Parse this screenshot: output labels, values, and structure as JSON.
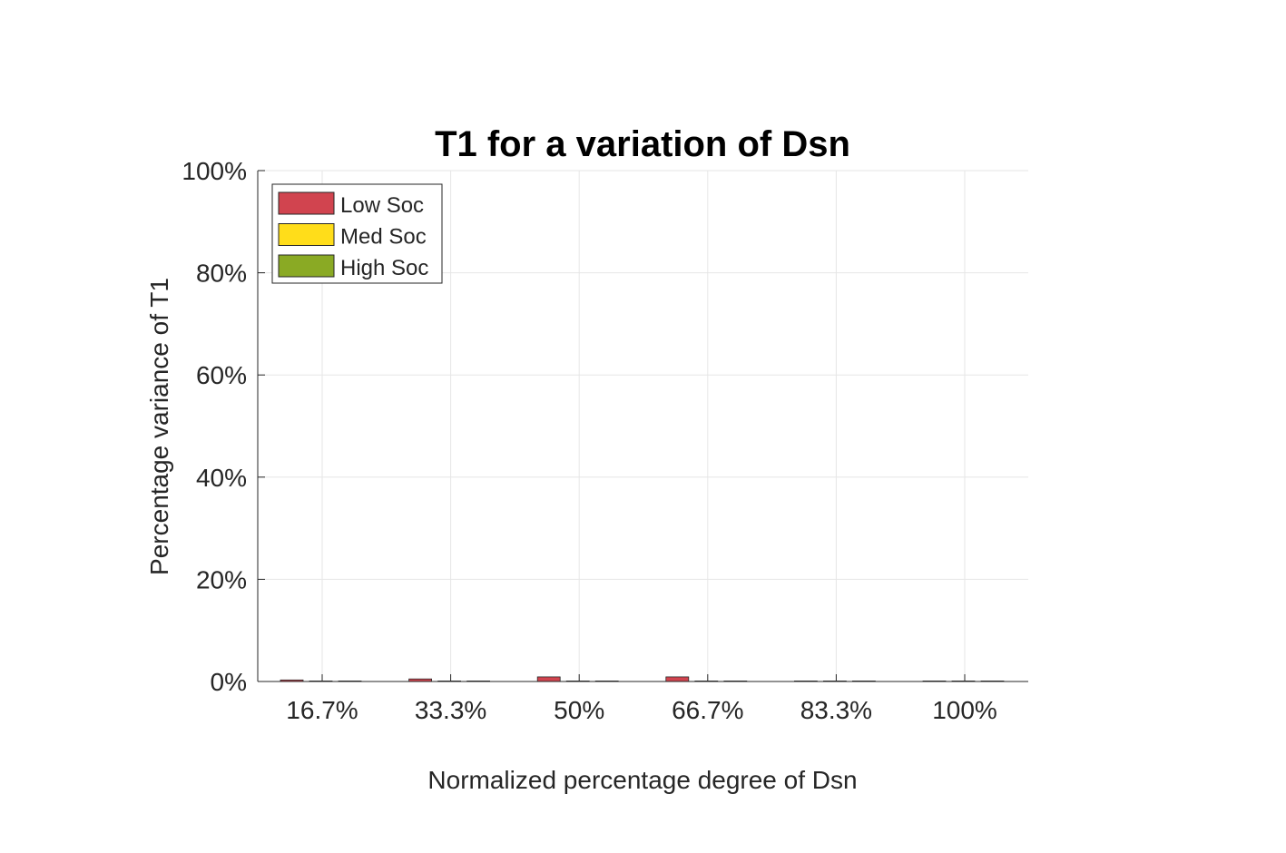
{
  "chart_data": {
    "type": "bar",
    "title": "T1 for a variation of Dsn",
    "xlabel": "Normalized percentage degree of Dsn",
    "ylabel": "Percentage variance of T1",
    "categories": [
      "16.7%",
      "33.3%",
      "50%",
      "66.7%",
      "83.3%",
      "100%"
    ],
    "yticks": [
      "0%",
      "20%",
      "40%",
      "60%",
      "80%",
      "100%"
    ],
    "ylim": [
      0,
      100
    ],
    "grid": true,
    "legend_position": "top-left",
    "series": [
      {
        "name": "Low Soc",
        "color": "#D1444F",
        "values": [
          0.3,
          0.5,
          0.9,
          0.9,
          0.1,
          0.0
        ]
      },
      {
        "name": "Med Soc",
        "color": "#FFDD1A",
        "values": [
          0.0,
          0.0,
          0.0,
          0.0,
          0.0,
          0.0
        ]
      },
      {
        "name": "High Soc",
        "color": "#8AAA24",
        "values": [
          0.0,
          0.0,
          0.0,
          0.0,
          0.0,
          0.0
        ]
      }
    ]
  }
}
